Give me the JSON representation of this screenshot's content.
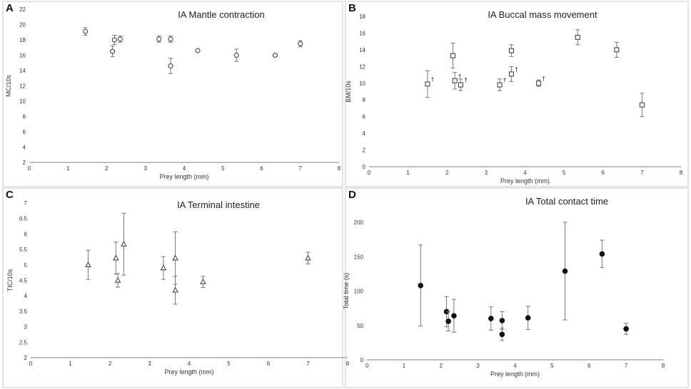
{
  "chart_data": [
    {
      "panel": "A",
      "type": "scatter",
      "marker": "circle-open",
      "title": "IA Mantle contraction",
      "xlabel": "Prey length (mm)",
      "ylabel": "MC/10s",
      "xlim": [
        0,
        8
      ],
      "ylim": [
        2,
        22
      ],
      "xticks": [
        0,
        1,
        2,
        3,
        4,
        5,
        6,
        7,
        8
      ],
      "yticks": [
        2,
        4,
        6,
        8,
        10,
        12,
        14,
        16,
        18,
        20,
        22
      ],
      "points": [
        {
          "x": 1.45,
          "y": 19.1,
          "err": 0.5
        },
        {
          "x": 2.15,
          "y": 16.5,
          "err": 0.7
        },
        {
          "x": 2.2,
          "y": 18.0,
          "err": 0.6
        },
        {
          "x": 2.35,
          "y": 18.1,
          "err": 0.4
        },
        {
          "x": 3.35,
          "y": 18.1,
          "err": 0.4
        },
        {
          "x": 3.65,
          "y": 18.1,
          "err": 0.4
        },
        {
          "x": 3.65,
          "y": 14.6,
          "err": 1.0
        },
        {
          "x": 4.35,
          "y": 16.6,
          "err": 0
        },
        {
          "x": 5.35,
          "y": 16.0,
          "err": 0.8
        },
        {
          "x": 6.35,
          "y": 16.0,
          "err": 0
        },
        {
          "x": 7.0,
          "y": 17.5,
          "err": 0.4
        }
      ]
    },
    {
      "panel": "B",
      "type": "scatter",
      "marker": "square-open",
      "title": "IA Buccal mass movement",
      "xlabel": "Prey length (mm)",
      "ylabel": "BM/10s",
      "xlim": [
        0,
        8
      ],
      "ylim": [
        0,
        18
      ],
      "xticks": [
        0,
        1,
        2,
        3,
        4,
        5,
        6,
        7,
        8
      ],
      "yticks": [
        0,
        2,
        4,
        6,
        8,
        10,
        12,
        14,
        16,
        18
      ],
      "annotation_symbol": "†",
      "points": [
        {
          "x": 1.5,
          "y": 9.9,
          "err": 1.6,
          "dagger": true
        },
        {
          "x": 2.15,
          "y": 13.3,
          "err": 1.5,
          "dagger": false
        },
        {
          "x": 2.2,
          "y": 10.3,
          "err": 1.0,
          "dagger": true
        },
        {
          "x": 2.35,
          "y": 9.8,
          "err": 0.7,
          "dagger": true
        },
        {
          "x": 3.35,
          "y": 9.8,
          "err": 0.7,
          "dagger": true
        },
        {
          "x": 3.65,
          "y": 11.1,
          "err": 0.9,
          "dagger": true
        },
        {
          "x": 3.65,
          "y": 13.9,
          "err": 0.7,
          "dagger": false
        },
        {
          "x": 4.35,
          "y": 10.0,
          "err": 0.4,
          "dagger": true
        },
        {
          "x": 5.35,
          "y": 15.5,
          "err": 0.9,
          "dagger": false
        },
        {
          "x": 6.35,
          "y": 14.0,
          "err": 0.9,
          "dagger": false
        },
        {
          "x": 7.0,
          "y": 7.4,
          "err": 1.4,
          "dagger": false
        }
      ]
    },
    {
      "panel": "C",
      "type": "scatter",
      "marker": "triangle-open",
      "title": "IA Terminal intestine",
      "xlabel": "Prey length (mm)",
      "ylabel": "TIC/10s",
      "xlim": [
        0,
        8
      ],
      "ylim": [
        2,
        7
      ],
      "xticks": [
        0,
        1,
        2,
        3,
        4,
        5,
        6,
        7,
        8
      ],
      "yticks": [
        2,
        2.5,
        3,
        3.5,
        4,
        4.5,
        5,
        5.5,
        6,
        6.5,
        7
      ],
      "points": [
        {
          "x": 1.45,
          "y": 5.0,
          "err": 0.47
        },
        {
          "x": 2.15,
          "y": 5.22,
          "err": 0.52
        },
        {
          "x": 2.2,
          "y": 4.5,
          "err": 0.22
        },
        {
          "x": 2.35,
          "y": 5.67,
          "err": 1.0
        },
        {
          "x": 3.35,
          "y": 4.9,
          "err": 0.37
        },
        {
          "x": 3.65,
          "y": 5.22,
          "err": 0.85
        },
        {
          "x": 3.65,
          "y": 4.18,
          "err": 0.45
        },
        {
          "x": 4.35,
          "y": 4.45,
          "err": 0.18
        },
        {
          "x": 7.0,
          "y": 5.22,
          "err": 0.19
        }
      ]
    },
    {
      "panel": "D",
      "type": "scatter",
      "marker": "circle-filled",
      "title": "IA Total contact time",
      "xlabel": "Prey length (mm)",
      "ylabel": "Total time (s)",
      "xlim": [
        0,
        8
      ],
      "ylim": [
        0,
        200
      ],
      "xticks": [
        0,
        1,
        2,
        3,
        4,
        5,
        6,
        7,
        8
      ],
      "yticks": [
        0,
        50,
        100,
        150,
        200
      ],
      "points": [
        {
          "x": 1.45,
          "y": 108,
          "err": 59
        },
        {
          "x": 2.15,
          "y": 70,
          "err": 22
        },
        {
          "x": 2.2,
          "y": 56,
          "err": 14
        },
        {
          "x": 2.35,
          "y": 64,
          "err": 24
        },
        {
          "x": 3.35,
          "y": 60,
          "err": 17
        },
        {
          "x": 3.65,
          "y": 57,
          "err": 13
        },
        {
          "x": 3.65,
          "y": 37,
          "err": 9
        },
        {
          "x": 4.35,
          "y": 61,
          "err": 17
        },
        {
          "x": 5.35,
          "y": 129,
          "err": 71
        },
        {
          "x": 6.35,
          "y": 154,
          "err": 20
        },
        {
          "x": 7.0,
          "y": 45,
          "err": 8
        }
      ]
    }
  ]
}
